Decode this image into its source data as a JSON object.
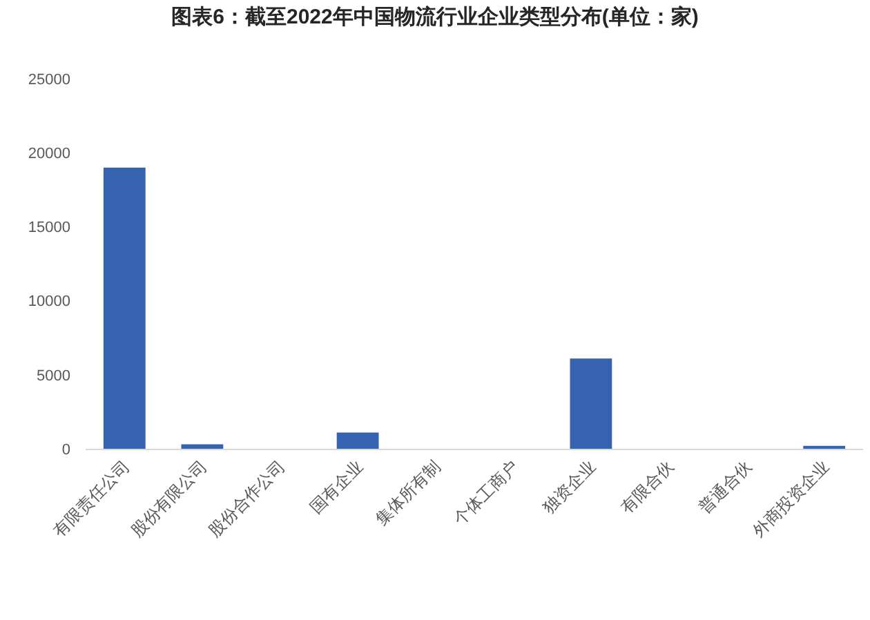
{
  "chart_data": {
    "type": "bar",
    "title": "图表6：截至2022年中国物流行业企业类型分布(单位：家)",
    "categories": [
      "有限责任公司",
      "股份有限公司",
      "股份合作公司",
      "国有企业",
      "集体所有制",
      "个体工商户",
      "独资企业",
      "有限合伙",
      "普通合伙",
      "外商投资企业"
    ],
    "values": [
      19000,
      300,
      0,
      1100,
      0,
      0,
      6100,
      0,
      0,
      200
    ],
    "color": "#3563b0",
    "ylim": [
      0,
      25000
    ],
    "yticks": [
      0,
      5000,
      10000,
      15000,
      20000,
      25000
    ],
    "grid": false
  }
}
